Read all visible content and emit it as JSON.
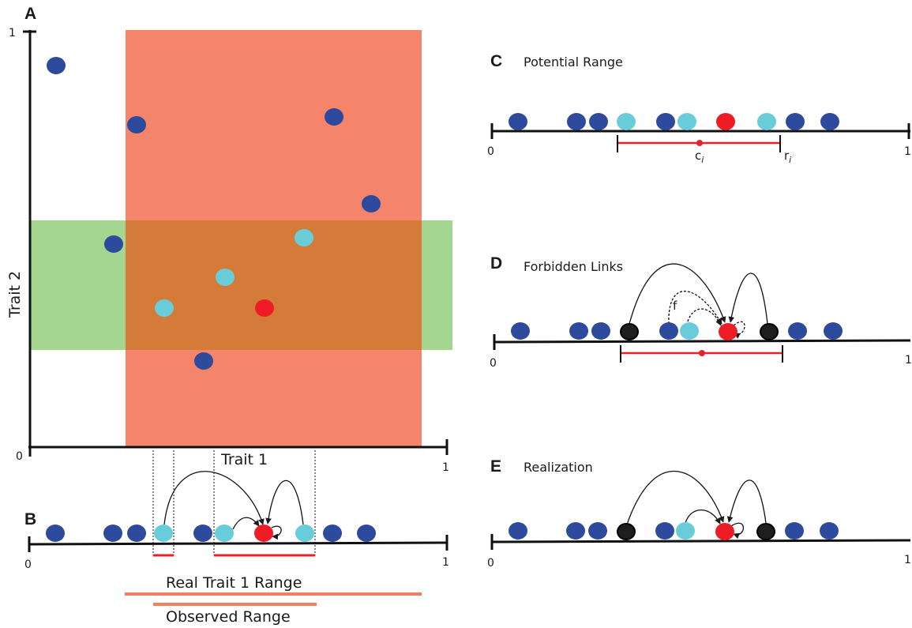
{
  "colors": {
    "dark_blue": "#2e4a9c",
    "light_blue": "#68cdd9",
    "red": "#ee1c25",
    "black_node": "#1e1e1e",
    "orange_range": "#f3785a",
    "green_range": "#9fd48a",
    "overlap": "#d57b3a",
    "range_line": "#e8212a",
    "real_range_bar": "#f08060"
  },
  "panel_a": {
    "letter": "A",
    "y_label": "Trait 2",
    "x_label": "Trait 1",
    "y_top_tick": "1",
    "origin_tick": "0",
    "x_end_tick": "1"
  },
  "panel_b": {
    "letter": "B",
    "tick_start": "0",
    "tick_end": "1",
    "real_range_label": "Real Trait 1 Range",
    "observed_range_label": "Observed Range"
  },
  "panel_c": {
    "letter": "C",
    "title": "Potential Range",
    "tick_start": "0",
    "tick_end": "1",
    "center_label": "c",
    "center_sub": "i",
    "radius_label": "r",
    "radius_sub": "i"
  },
  "panel_d": {
    "letter": "D",
    "title": "Forbidden Links",
    "tick_start": "0",
    "tick_end": "1",
    "forbidden_label": "f"
  },
  "panel_e": {
    "letter": "E",
    "title": "Realization",
    "tick_start": "0",
    "tick_end": "1"
  }
}
